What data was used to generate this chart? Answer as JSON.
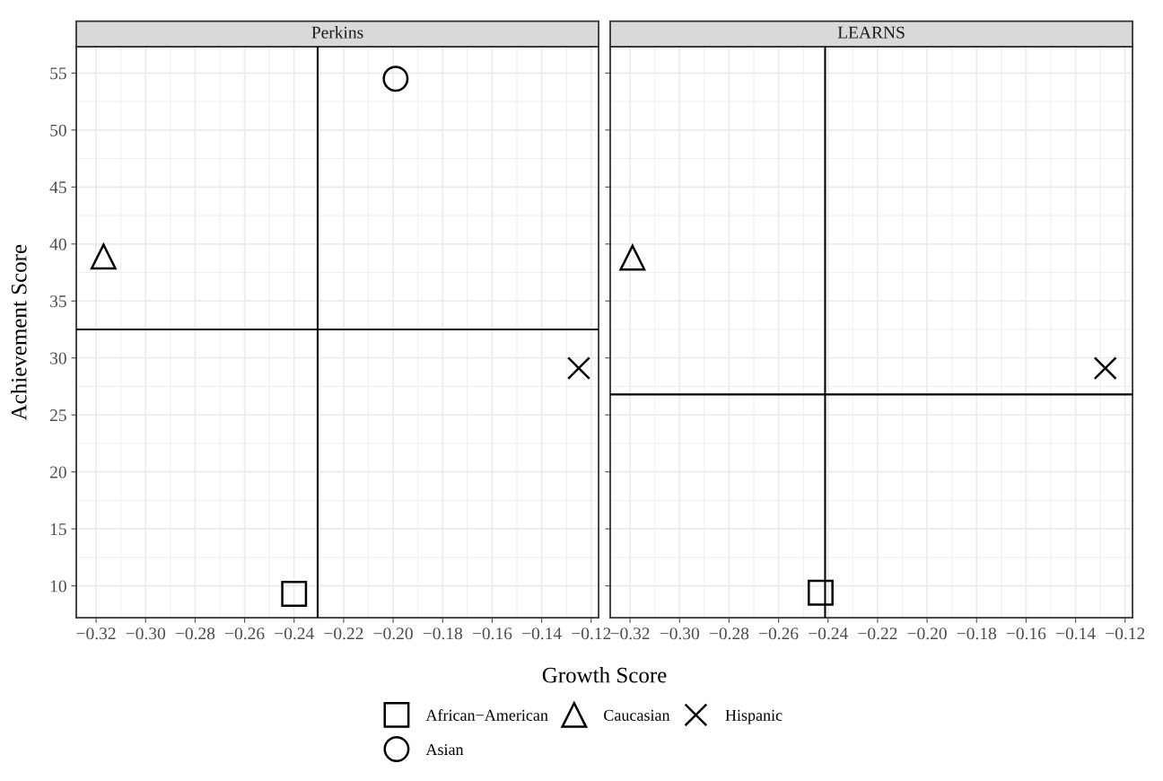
{
  "chart_data": [
    {
      "type": "scatter",
      "title": "Perkins",
      "xlabel": "Growth Score",
      "ylabel": "Achievement Score",
      "legend": "bottom",
      "grid": true,
      "tick_labels": true,
      "xlim": [
        -0.328,
        -0.117
      ],
      "ylim": [
        7.2,
        57.3
      ],
      "xticks": [
        {
          "value": -0.32,
          "label": "−0.32"
        },
        {
          "value": -0.3,
          "label": "−0.30"
        },
        {
          "value": -0.28,
          "label": "−0.28"
        },
        {
          "value": -0.26,
          "label": "−0.26"
        },
        {
          "value": -0.24,
          "label": "−0.24"
        },
        {
          "value": -0.22,
          "label": "−0.22"
        },
        {
          "value": -0.2,
          "label": "−0.20"
        },
        {
          "value": -0.18,
          "label": "−0.18"
        },
        {
          "value": -0.16,
          "label": "−0.16"
        },
        {
          "value": -0.14,
          "label": "−0.14"
        },
        {
          "value": -0.12,
          "label": "−0.12"
        }
      ],
      "yticks": [
        10,
        15,
        20,
        25,
        30,
        35,
        40,
        45,
        50,
        55
      ],
      "series": [
        {
          "name": "African−American",
          "color": "#000000",
          "marker": "square",
          "x": [
            -0.24
          ],
          "values": [
            9.3
          ]
        },
        {
          "name": "Asian",
          "color": "#000000",
          "marker": "circle",
          "x": [
            -0.199
          ],
          "values": [
            54.5
          ]
        },
        {
          "name": "Caucasian",
          "color": "#000000",
          "marker": "triangle",
          "x": [
            -0.317
          ],
          "values": [
            38.9
          ]
        },
        {
          "name": "Hispanic",
          "color": "#000000",
          "marker": "cross",
          "x": [
            -0.125
          ],
          "values": [
            29.1
          ]
        }
      ],
      "ref_lines": [
        {
          "axis": "x",
          "value": -0.2305,
          "color": "#000000"
        },
        {
          "axis": "y",
          "value": 32.5,
          "color": "#000000"
        }
      ]
    },
    {
      "type": "scatter",
      "title": "LEARNS",
      "grid": true,
      "tick_labels": "x",
      "xlim": [
        -0.328,
        -0.117
      ],
      "ylim": [
        7.2,
        57.3
      ],
      "xticks": [
        {
          "value": -0.32,
          "label": "−0.32"
        },
        {
          "value": -0.3,
          "label": "−0.30"
        },
        {
          "value": -0.28,
          "label": "−0.28"
        },
        {
          "value": -0.26,
          "label": "−0.26"
        },
        {
          "value": -0.24,
          "label": "−0.24"
        },
        {
          "value": -0.22,
          "label": "−0.22"
        },
        {
          "value": -0.2,
          "label": "−0.20"
        },
        {
          "value": -0.18,
          "label": "−0.18"
        },
        {
          "value": -0.16,
          "label": "−0.16"
        },
        {
          "value": -0.14,
          "label": "−0.14"
        },
        {
          "value": -0.12,
          "label": "−0.12"
        }
      ],
      "yticks": [
        10,
        15,
        20,
        25,
        30,
        35,
        40,
        45,
        50,
        55
      ],
      "series": [
        {
          "name": "African−American",
          "color": "#000000",
          "marker": "square",
          "x": [
            -0.243
          ],
          "values": [
            9.4
          ]
        },
        {
          "name": "Caucasian",
          "color": "#000000",
          "marker": "triangle",
          "x": [
            -0.319
          ],
          "values": [
            38.8
          ]
        },
        {
          "name": "Hispanic",
          "color": "#000000",
          "marker": "cross",
          "x": [
            -0.128
          ],
          "values": [
            29.1
          ]
        }
      ],
      "ref_lines": [
        {
          "axis": "x",
          "value": -0.2412,
          "color": "#000000"
        },
        {
          "axis": "y",
          "value": 26.8,
          "color": "#000000"
        }
      ]
    }
  ]
}
